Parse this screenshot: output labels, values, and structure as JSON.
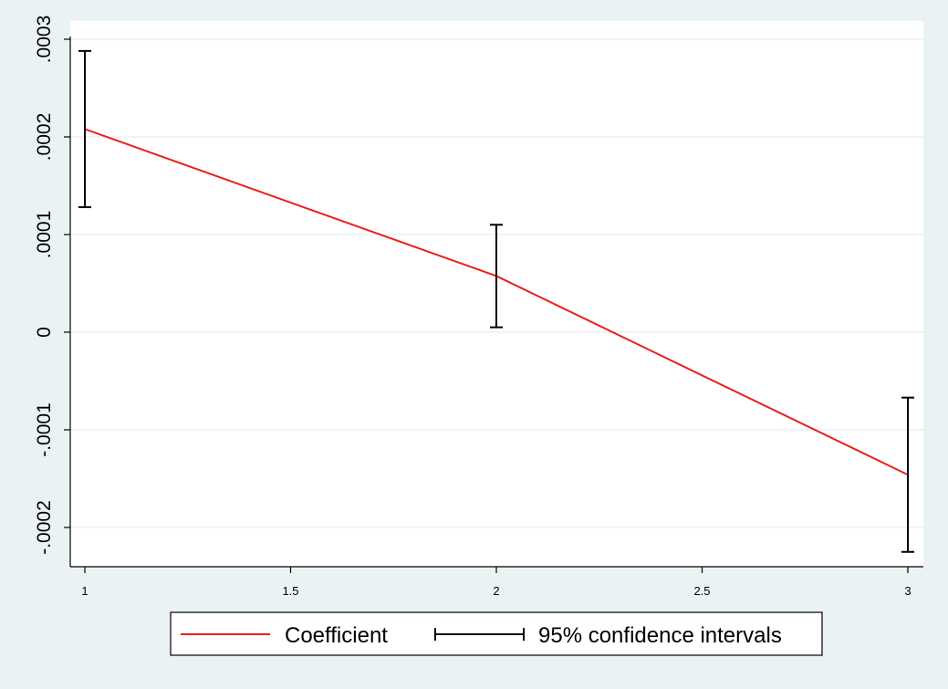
{
  "chart_data": {
    "type": "line",
    "title": "",
    "xlabel": "",
    "ylabel": "",
    "xlim": [
      1,
      3
    ],
    "ylim": [
      -0.00024,
      0.0003
    ],
    "x_ticks": [
      1,
      1.5,
      2,
      2.5,
      3
    ],
    "x_tick_labels": [
      "1",
      "1.5",
      "2",
      "2.5",
      "3"
    ],
    "y_ticks": [
      -0.0002,
      -0.0001,
      0,
      0.0001,
      0.0002,
      0.0003
    ],
    "y_tick_labels": [
      "-.0002",
      "-.0001",
      "0",
      ".0001",
      ".0002",
      ".0003"
    ],
    "grid": true,
    "legend_position": "bottom",
    "series": [
      {
        "name": "Coefficient",
        "color": "#e8211f",
        "x": [
          1,
          2,
          3
        ],
        "y": [
          0.000208,
          5.75e-05,
          -0.000146
        ]
      }
    ],
    "error_bars": {
      "name": "95% confidence intervals",
      "color": "#000000",
      "x": [
        1,
        2,
        3
      ],
      "low": [
        0.000128,
        5e-06,
        -0.000225
      ],
      "high": [
        0.000288,
        0.00011,
        -6.7e-05
      ]
    }
  }
}
